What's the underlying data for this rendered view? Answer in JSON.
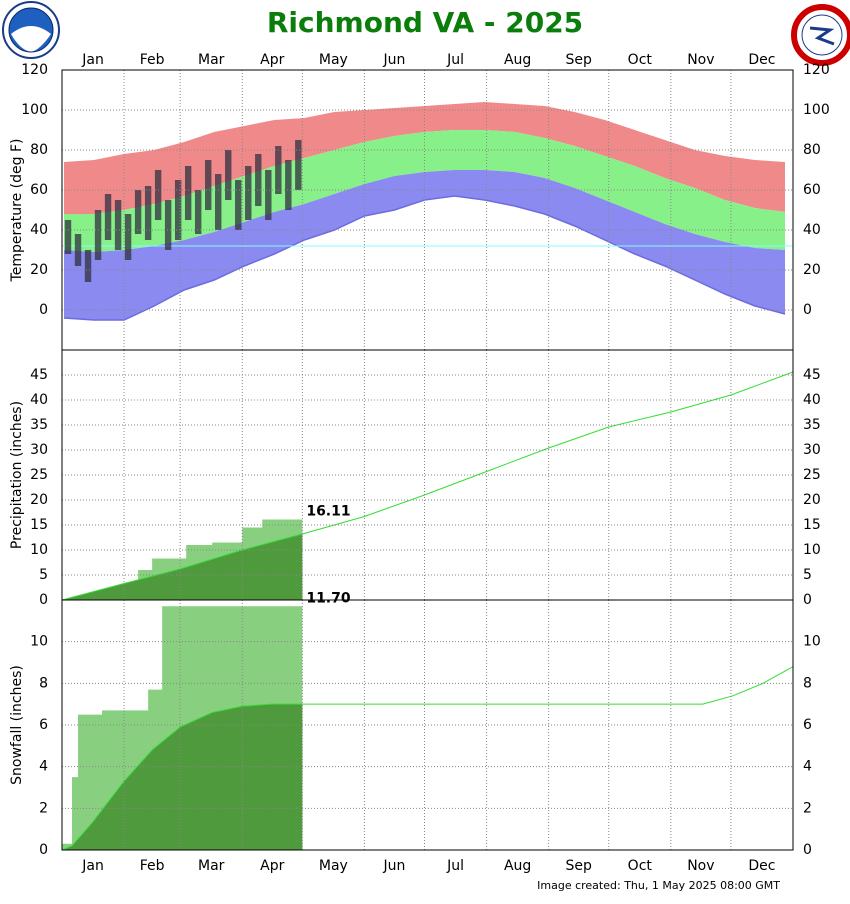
{
  "title": "Richmond VA - 2025",
  "footer": "Image created: Thu, 1 May 2025 08:00 GMT",
  "x_axis": {
    "xlim": [
      0,
      365
    ],
    "xticks": [
      {
        "value": 15.5,
        "label": "Jan"
      },
      {
        "value": 45,
        "label": "Feb"
      },
      {
        "value": 74.5,
        "label": "Mar"
      },
      {
        "value": 105,
        "label": "Apr"
      },
      {
        "value": 135.5,
        "label": "May"
      },
      {
        "value": 166,
        "label": "Jun"
      },
      {
        "value": 196.5,
        "label": "Jul"
      },
      {
        "value": 227.5,
        "label": "Aug"
      },
      {
        "value": 258,
        "label": "Sep"
      },
      {
        "value": 288.5,
        "label": "Oct"
      },
      {
        "value": 319,
        "label": "Nov"
      },
      {
        "value": 349.5,
        "label": "Dec"
      }
    ],
    "xgrid": [
      31,
      59,
      90,
      120,
      151,
      181,
      212,
      243,
      273,
      304,
      334
    ]
  },
  "chart_data": [
    {
      "type": "temperature",
      "ylabel": "Temperature (deg F)",
      "ylim": [
        -20,
        120
      ],
      "yticks": [
        0,
        20,
        40,
        60,
        80,
        100,
        120
      ],
      "grid": true,
      "x": [
        1,
        16,
        31,
        46,
        61,
        76,
        91,
        106,
        121,
        136,
        151,
        166,
        181,
        196,
        211,
        226,
        241,
        256,
        271,
        286,
        301,
        316,
        331,
        346,
        361
      ],
      "series": [
        {
          "color": "#f08a8a",
          "values": [
            74,
            75,
            78,
            80,
            84,
            89,
            92,
            95,
            96,
            99,
            100,
            101,
            102,
            103,
            104,
            103,
            102,
            99,
            95,
            90,
            85,
            80,
            77,
            75,
            74
          ]
        },
        {
          "color": "#88f088",
          "values": [
            48,
            48,
            50,
            53,
            57,
            62,
            67,
            72,
            76,
            80,
            84,
            87,
            89,
            90,
            90,
            89,
            86,
            82,
            77,
            72,
            66,
            61,
            55,
            51,
            49
          ]
        },
        {
          "color": "#8a8af0",
          "values": [
            30,
            29,
            30,
            32,
            35,
            39,
            44,
            49,
            53,
            58,
            63,
            67,
            69,
            70,
            70,
            69,
            66,
            61,
            55,
            49,
            43,
            38,
            34,
            31,
            30
          ]
        },
        {
          "color": "#6c6ce0",
          "values": [
            -4,
            -5,
            -5,
            2,
            10,
            15,
            22,
            28,
            35,
            40,
            47,
            50,
            55,
            57,
            55,
            52,
            48,
            42,
            35,
            28,
            22,
            15,
            8,
            2,
            -2
          ]
        }
      ],
      "reference_line": {
        "value": 32,
        "color": "#80ffff"
      },
      "observed": {
        "color": "#303040",
        "x": [
          3,
          8,
          13,
          18,
          23,
          28,
          33,
          38,
          43,
          48,
          53,
          58,
          63,
          68,
          73,
          78,
          83,
          88,
          93,
          98,
          103,
          108,
          113,
          118
        ],
        "high": [
          45,
          38,
          30,
          50,
          58,
          55,
          48,
          60,
          62,
          70,
          55,
          65,
          72,
          60,
          75,
          68,
          80,
          65,
          72,
          78,
          70,
          82,
          75,
          85
        ],
        "low": [
          28,
          22,
          14,
          25,
          35,
          30,
          25,
          38,
          35,
          45,
          30,
          35,
          45,
          38,
          50,
          40,
          55,
          40,
          45,
          52,
          45,
          58,
          50,
          60
        ]
      }
    },
    {
      "type": "cumulative",
      "ylabel": "Precipitation (inches)",
      "ylim": [
        0,
        50
      ],
      "yticks": [
        0,
        5,
        10,
        15,
        20,
        25,
        30,
        35,
        40,
        45
      ],
      "grid": true,
      "normal": {
        "color": "#33dd33",
        "to_date_color": "#4f9a3c",
        "x": [
          0,
          31,
          59,
          90,
          120,
          151,
          181,
          212,
          243,
          273,
          304,
          334,
          365
        ],
        "values": [
          0,
          3.3,
          6.2,
          10.0,
          13.2,
          16.7,
          21.0,
          25.7,
          30.4,
          34.6,
          37.6,
          41.0,
          45.6
        ]
      },
      "observed": {
        "color": "#88d080",
        "x": [
          0,
          10,
          20,
          31,
          38,
          45,
          62,
          75,
          90,
          100,
          120
        ],
        "values": [
          0,
          0.5,
          1.5,
          3,
          6,
          8.3,
          11,
          11.5,
          14.5,
          16.11,
          16.11
        ]
      },
      "annotation": {
        "x": 120,
        "y": 16.11,
        "text": "16.11"
      }
    },
    {
      "type": "cumulative",
      "ylabel": "Snowfall (inches)",
      "ylim": [
        0,
        12
      ],
      "yticks": [
        0,
        2,
        4,
        6,
        8,
        10
      ],
      "grid": true,
      "normal": {
        "color": "#33dd33",
        "to_date_color": "#4f9a3c",
        "x": [
          0,
          5,
          15,
          31,
          45,
          59,
          75,
          90,
          105,
          320,
          335,
          350,
          365
        ],
        "values": [
          0,
          0.2,
          1.3,
          3.3,
          4.8,
          5.9,
          6.6,
          6.9,
          7.0,
          7.0,
          7.4,
          8.0,
          8.8
        ]
      },
      "observed": {
        "color": "#88d080",
        "x": [
          0,
          3,
          5,
          8,
          20,
          43,
          50,
          120
        ],
        "values": [
          0.3,
          0.3,
          3.5,
          6.5,
          6.7,
          7.7,
          11.7,
          11.7
        ]
      },
      "annotation": {
        "x": 120,
        "y": 11.7,
        "text": "11.70"
      }
    }
  ]
}
